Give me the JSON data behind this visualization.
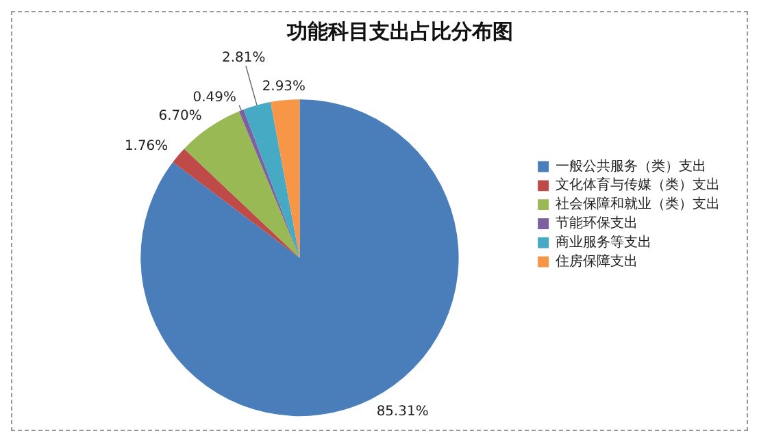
{
  "chart_data": {
    "type": "pie",
    "title": "功能科目支出占比分布图",
    "categories": [
      "一般公共服务（类）支出",
      "文化体育与传媒（类）支出",
      "社会保障和就业（类）支出",
      "节能环保支出",
      "商业服务等支出",
      "住房保障支出"
    ],
    "values": [
      85.31,
      1.76,
      6.7,
      0.49,
      2.81,
      2.93
    ],
    "colors": [
      "#4a7ebb",
      "#be4b48",
      "#98b954",
      "#7d60a0",
      "#46aac5",
      "#f79646"
    ],
    "value_labels": [
      "85.31%",
      "1.76%",
      "6.70%",
      "0.49%",
      "2.81%",
      "2.93%"
    ],
    "legend": "right"
  }
}
